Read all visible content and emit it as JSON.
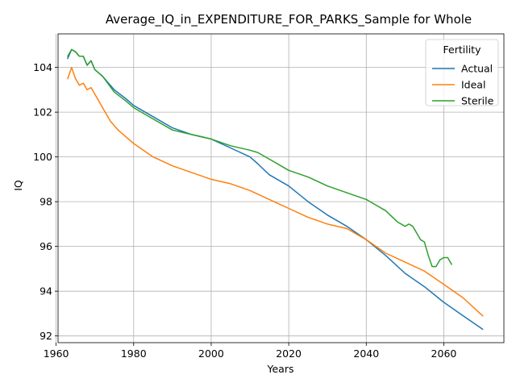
{
  "chart_data": {
    "type": "line",
    "title": "Average_IQ_in_EXPENDITURE_FOR_PARKS_Sample for Whole",
    "xlabel": "Years",
    "ylabel": "IQ",
    "xlim": [
      1960.5,
      2075.5
    ],
    "ylim": [
      91.7,
      105.5
    ],
    "xticks": [
      1960,
      1980,
      2000,
      2020,
      2040,
      2060
    ],
    "yticks": [
      92,
      94,
      96,
      98,
      100,
      102,
      104
    ],
    "grid": true,
    "legend": {
      "title": "Fertility",
      "position": "top-right"
    },
    "series": [
      {
        "name": "Actual",
        "color": "#1f77b4",
        "x": [
          1963,
          1964,
          1965,
          1966,
          1967,
          1968,
          1969,
          1970,
          1972,
          1975,
          1978,
          1980,
          1985,
          1990,
          1995,
          2000,
          2005,
          2010,
          2012,
          2015,
          2020,
          2025,
          2030,
          2035,
          2040,
          2045,
          2050,
          2055,
          2060,
          2065,
          2070
        ],
        "y": [
          104.4,
          104.8,
          104.7,
          104.5,
          104.5,
          104.1,
          104.3,
          103.9,
          103.6,
          103.0,
          102.6,
          102.3,
          101.8,
          101.3,
          101.0,
          100.8,
          100.4,
          100.0,
          99.7,
          99.2,
          98.7,
          98.0,
          97.4,
          96.9,
          96.3,
          95.6,
          94.8,
          94.2,
          93.5,
          92.9,
          92.3
        ]
      },
      {
        "name": "Ideal",
        "color": "#ff7f0e",
        "x": [
          1963,
          1964,
          1965,
          1966,
          1967,
          1968,
          1969,
          1970,
          1972,
          1974,
          1976,
          1978,
          1980,
          1985,
          1990,
          1995,
          2000,
          2005,
          2010,
          2015,
          2020,
          2025,
          2030,
          2035,
          2040,
          2045,
          2050,
          2055,
          2060,
          2065,
          2070
        ],
        "y": [
          103.5,
          104.0,
          103.5,
          103.2,
          103.3,
          103.0,
          103.1,
          102.8,
          102.2,
          101.6,
          101.2,
          100.9,
          100.6,
          100.0,
          99.6,
          99.3,
          99.0,
          98.8,
          98.5,
          98.1,
          97.7,
          97.3,
          97.0,
          96.8,
          96.3,
          95.7,
          95.3,
          94.9,
          94.3,
          93.7,
          92.9
        ]
      },
      {
        "name": "Sterile",
        "color": "#2ca02c",
        "x": [
          1963,
          1964,
          1965,
          1966,
          1967,
          1968,
          1969,
          1970,
          1972,
          1975,
          1978,
          1980,
          1985,
          1990,
          1995,
          2000,
          2005,
          2010,
          2012,
          2015,
          2020,
          2025,
          2030,
          2035,
          2040,
          2045,
          2048,
          2050,
          2051,
          2052,
          2053,
          2054,
          2055,
          2056,
          2057,
          2058,
          2059,
          2060,
          2061,
          2062
        ],
        "y": [
          104.5,
          104.8,
          104.7,
          104.5,
          104.5,
          104.1,
          104.3,
          103.9,
          103.6,
          102.9,
          102.5,
          102.2,
          101.7,
          101.2,
          101.0,
          100.8,
          100.5,
          100.3,
          100.2,
          99.9,
          99.4,
          99.1,
          98.7,
          98.4,
          98.1,
          97.6,
          97.1,
          96.9,
          97.0,
          96.9,
          96.6,
          96.3,
          96.2,
          95.6,
          95.1,
          95.1,
          95.4,
          95.5,
          95.5,
          95.2
        ]
      }
    ]
  }
}
